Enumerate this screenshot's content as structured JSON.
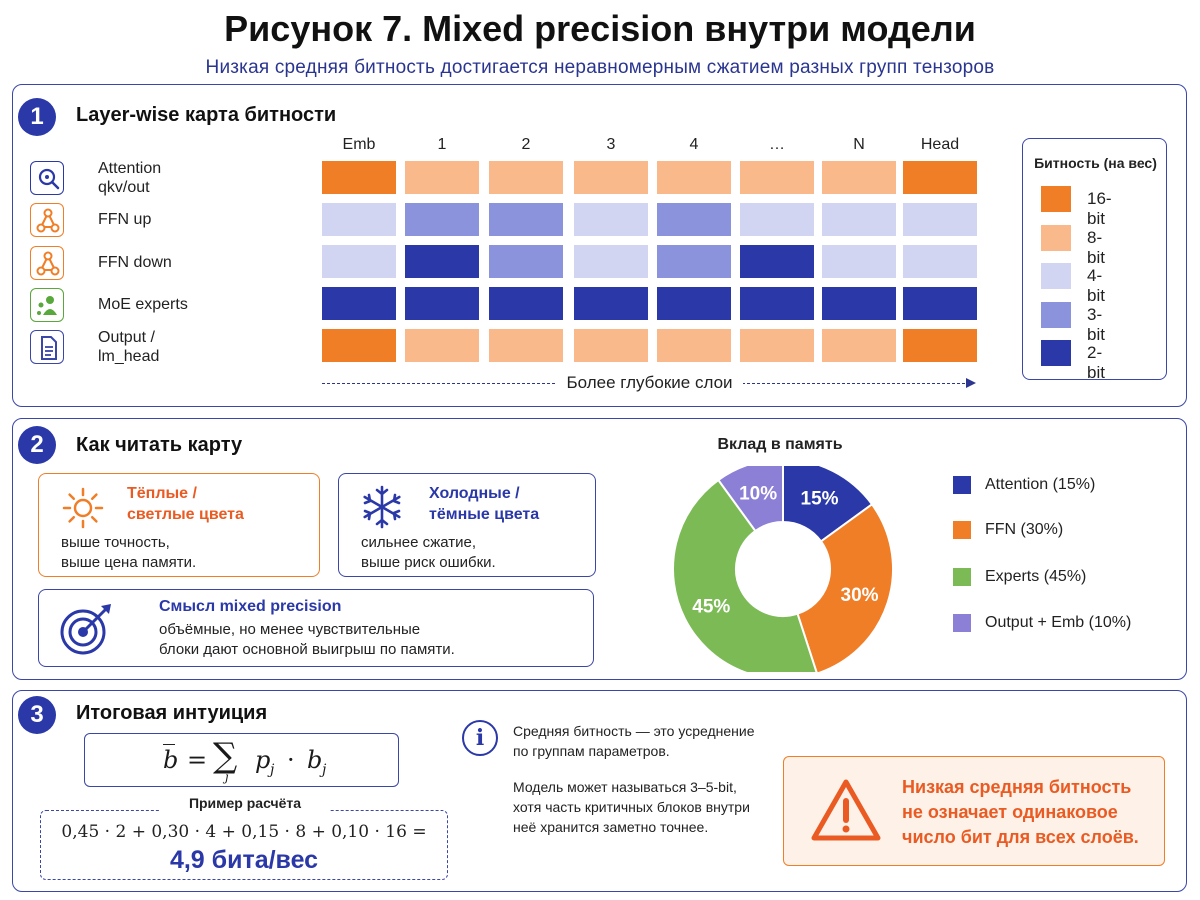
{
  "title": "Рисунок 7. Mixed precision внутри модели",
  "subtitle": "Низкая средняя битность достигается неравномерным сжатием разных групп тензоров",
  "section1": {
    "number": "1",
    "title": "Layer-wise карта битности",
    "rows": [
      {
        "label": "Attention\nqkv/out",
        "icon": "attention-search-icon",
        "color": "#2a38a8"
      },
      {
        "label": "FFN up",
        "icon": "network-nodes-icon",
        "color": "#f07e27"
      },
      {
        "label": "FFN down",
        "icon": "network-nodes-icon",
        "color": "#f07e27"
      },
      {
        "label": "MoE experts",
        "icon": "experts-icon",
        "color": "#58a83b"
      },
      {
        "label": "Output /\nlm_head",
        "icon": "document-icon",
        "color": "#3a46a8"
      }
    ],
    "columns": [
      "Emb",
      "1",
      "2",
      "3",
      "4",
      "…",
      "N",
      "Head"
    ],
    "grid_bits": [
      [
        16,
        8,
        8,
        8,
        8,
        8,
        8,
        16
      ],
      [
        4,
        3,
        3,
        4,
        3,
        4,
        4,
        4
      ],
      [
        4,
        2,
        3,
        4,
        3,
        2,
        4,
        4
      ],
      [
        2,
        2,
        2,
        2,
        2,
        2,
        2,
        2
      ],
      [
        16,
        8,
        8,
        8,
        8,
        8,
        8,
        16
      ]
    ],
    "axis_label": "Более глубокие слои",
    "legend": {
      "title": "Битность (на вес)",
      "items": [
        {
          "label": "16-bit",
          "bits": 16,
          "color": "#f07e27"
        },
        {
          "label": "8-bit",
          "bits": 8,
          "color": "#f9b98a"
        },
        {
          "label": "4-bit",
          "bits": 4,
          "color": "#d2d5f2"
        },
        {
          "label": "3-bit",
          "bits": 3,
          "color": "#8b93dc"
        },
        {
          "label": "2-bit",
          "bits": 2,
          "color": "#2a38a8"
        }
      ]
    }
  },
  "section2": {
    "number": "2",
    "title": "Как читать карту",
    "warm": {
      "title": "Тёплые /\nсветлые цвета",
      "body": "выше точность,\nвыше цена памяти."
    },
    "cold": {
      "title": "Холодные /\nтёмные цвета",
      "body": "сильнее сжатие,\nвыше риск ошибки."
    },
    "meaning": {
      "title": "Смысл mixed precision",
      "body": "объёмные, но менее чувствительные\nблоки дают основной выигрыш по памяти."
    }
  },
  "chart_data": {
    "type": "pie",
    "title": "Вклад в память",
    "categories": [
      "Attention",
      "FFN",
      "Experts",
      "Output + Emb"
    ],
    "values": [
      15,
      30,
      45,
      10
    ],
    "slice_labels": [
      "15%",
      "30%",
      "45%",
      "10%"
    ],
    "legend_labels": [
      "Attention (15%)",
      "FFN (30%)",
      "Experts (45%)",
      "Output + Emb (10%)"
    ],
    "colors": [
      "#2a38a8",
      "#f07e27",
      "#7cba56",
      "#8b7fd6"
    ],
    "donut": true,
    "legend_position": "right"
  },
  "section3": {
    "number": "3",
    "title": "Итоговая интуиция",
    "formula": {
      "lhs": "b",
      "eq": "=",
      "sum_sub": "j",
      "p": "p",
      "b": "b",
      "sub": "j",
      "dot": "·"
    },
    "example_label": "Пример расчёта",
    "example_expr": "0,45 · 2 + 0,30 · 4 + 0,15 · 8 + 0,10 · 16 =",
    "example_result": "4,9 бита/вес",
    "info1": "Средняя битность — это усреднение\nпо группам параметров.",
    "info2": "Модель может называться 3–5-bit,\nхотя часть критичных блоков внутри\nнеё хранится заметно точнее.",
    "warning": "Низкая средняя битность\nне означает одинаковое\nчисло бит для всех слоёв."
  }
}
